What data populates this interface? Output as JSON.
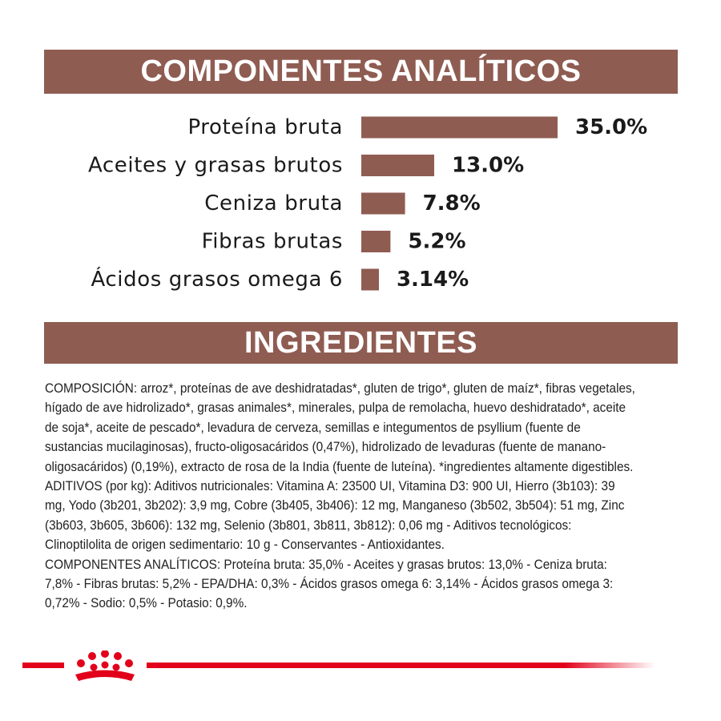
{
  "header_analytic": "COMPONENTES ANALÍTICOS",
  "header_ingredients": "INGREDIENTES",
  "chart_data": {
    "type": "bar",
    "orientation": "horizontal",
    "categories": [
      "Proteína bruta",
      "Aceites y grasas brutos",
      "Ceniza bruta",
      "Fibras brutas",
      "Ácidos grasos omega 6"
    ],
    "values": [
      35.0,
      13.0,
      7.8,
      5.2,
      3.14
    ],
    "value_labels": [
      "35.0%",
      "13.0%",
      "7.8%",
      "5.2%",
      "3.14%"
    ],
    "title": "",
    "xlabel": "",
    "ylabel": "",
    "grid": false,
    "bar_color": "#8f5c52"
  },
  "ingredients": {
    "composicion": "COMPOSICIÓN: arroz*, proteínas de ave deshidratadas*, gluten de trigo*, gluten de maíz*, fibras vegetales, hígado de ave hidrolizado*, grasas animales*, minerales, pulpa de remolacha, huevo deshidratado*, aceite de soja*, aceite de pescado*, levadura de cerveza, semillas e integumentos de psyllium (fuente de sustancias mucilaginosas), fructo-oligosacáridos (0,47%), hidrolizado de levaduras (fuente de manano-oligosacáridos) (0,19%), extracto de rosa de la India (fuente de luteína). *ingredientes altamente digestibles.",
    "aditivos": "ADITIVOS (por kg): Aditivos nutricionales: Vitamina A: 23500 UI, Vitamina D3: 900 UI, Hierro (3b103): 39 mg, Yodo (3b201, 3b202): 3,9 mg, Cobre (3b405, 3b406): 12 mg, Manganeso (3b502, 3b504): 51 mg, Zinc (3b603, 3b605, 3b606): 132 mg, Selenio (3b801, 3b811, 3b812): 0,06 mg - Aditivos tecnológicos: Clinoptilolita de origen sedimentario: 10 g - Conservantes - Antioxidantes.",
    "componentes": "COMPONENTES ANALÍTICOS: Proteína bruta: 35,0% - Aceites y grasas brutos: 13,0% - Ceniza bruta: 7,8% - Fibras brutas: 5,2% - EPA/DHA: 0,3% - Ácidos grasos omega 6: 3,14% - Ácidos grasos omega 3: 0,72% - Sodio: 0,5% - Potasio: 0,9%."
  },
  "colors": {
    "band": "#8f5c52",
    "brand_red": "#e2001a"
  },
  "logo_icon": "royal-canin-crown-icon"
}
